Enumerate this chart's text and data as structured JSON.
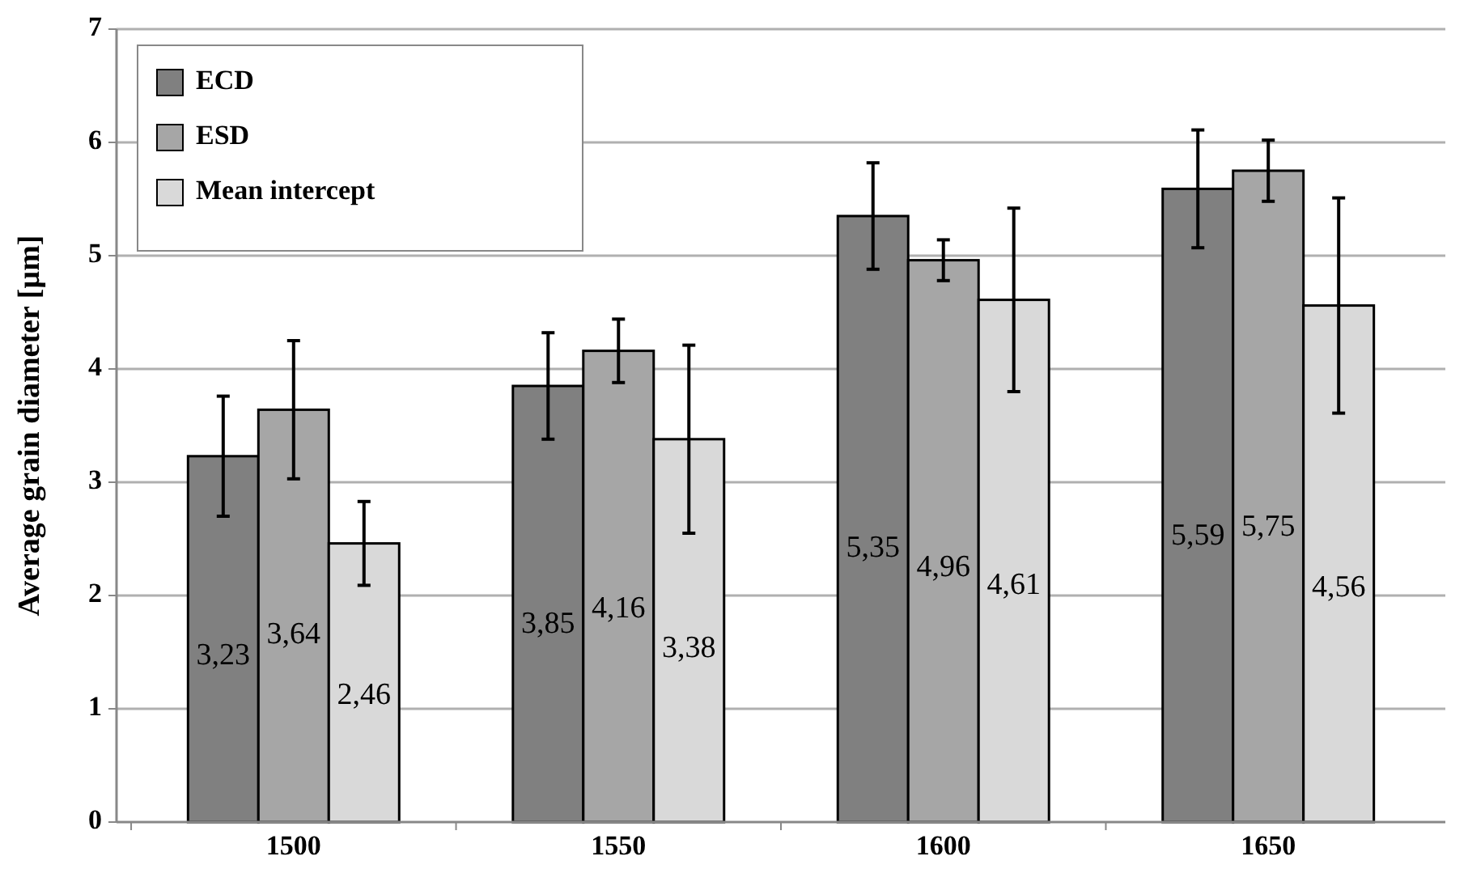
{
  "chart_data": {
    "type": "bar",
    "ylabel": "Average grain diameter [µm]",
    "categories": [
      "1500",
      "1550",
      "1600",
      "1650"
    ],
    "series": [
      {
        "name": "ECD",
        "color": "#808080",
        "values": [
          3.23,
          3.85,
          5.35,
          5.59
        ],
        "value_labels": [
          "3,23",
          "3,85",
          "5,35",
          "5,59"
        ],
        "errors": [
          0.53,
          0.47,
          0.47,
          0.52
        ]
      },
      {
        "name": "ESD",
        "color": "#a6a6a6",
        "values": [
          3.64,
          4.16,
          4.96,
          5.75
        ],
        "value_labels": [
          "3,64",
          "4,16",
          "4,96",
          "5,75"
        ],
        "errors": [
          0.61,
          0.28,
          0.18,
          0.27
        ]
      },
      {
        "name": "Mean intercept",
        "color": "#d9d9d9",
        "values": [
          2.46,
          3.38,
          4.61,
          4.56
        ],
        "value_labels": [
          "2,46",
          "3,38",
          "4,61",
          "4,56"
        ],
        "errors": [
          0.37,
          0.83,
          0.81,
          0.95
        ]
      }
    ],
    "ylim": [
      0,
      7
    ],
    "yticks": [
      0,
      1,
      2,
      3,
      4,
      5,
      6,
      7
    ],
    "grid": "y",
    "legend": "top left"
  }
}
